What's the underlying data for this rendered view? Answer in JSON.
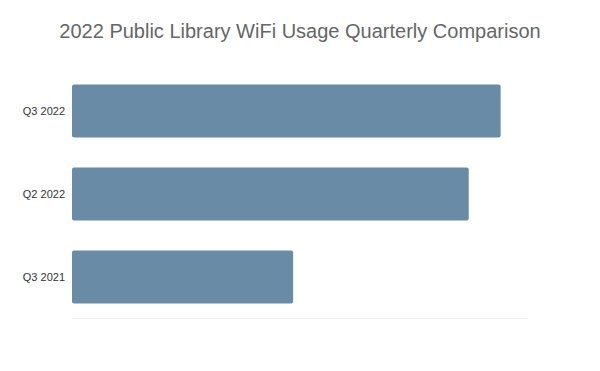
{
  "chart_data": {
    "type": "bar",
    "title": "2022 Public Library WiFi Usage Quarterly Comparison",
    "orientation": "horizontal",
    "categories": [
      "Q3 2022",
      "Q2 2022",
      "Q3 2021"
    ],
    "values": [
      94,
      87,
      48.5
    ],
    "color": "#6a8ba6",
    "xlim": [
      0,
      100
    ],
    "tick_labels": "y",
    "grid": false
  }
}
